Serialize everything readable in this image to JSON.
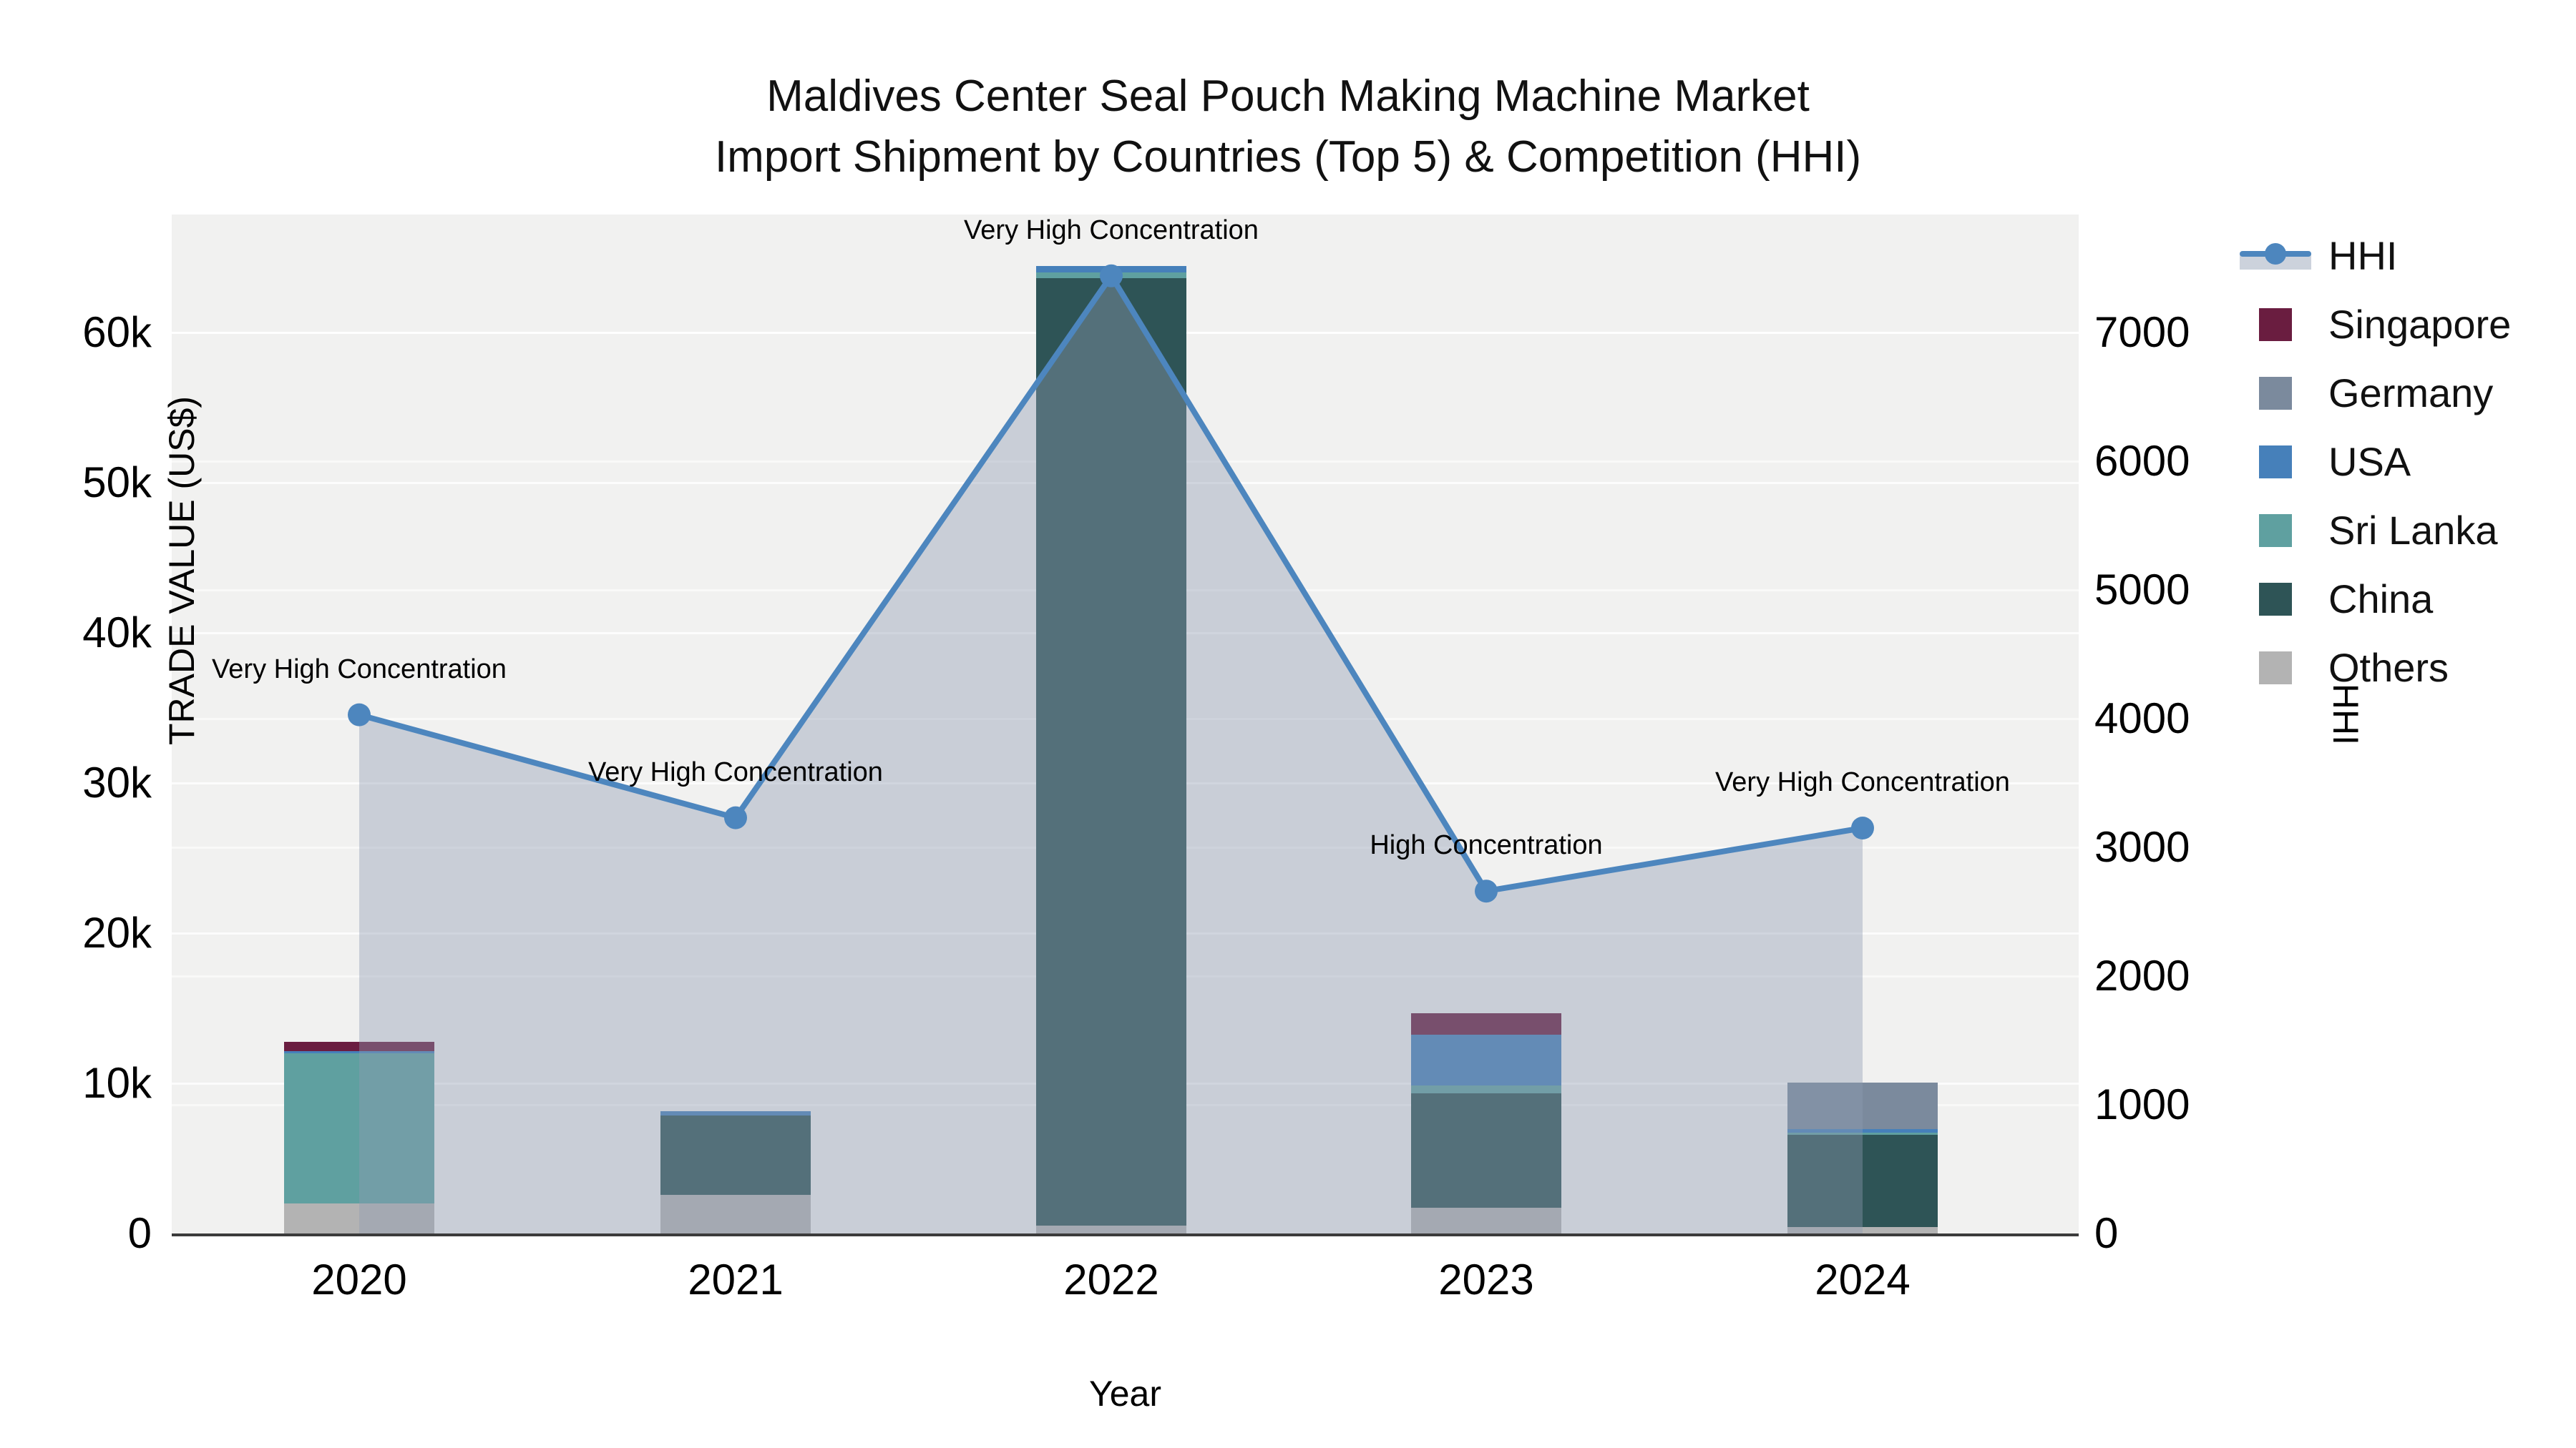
{
  "title": {
    "line1": "Maldives Center Seal Pouch Making Machine Market",
    "line2": "Import Shipment by Countries (Top 5) & Competition (HHI)"
  },
  "axes": {
    "x": {
      "title": "Year",
      "ticks": [
        "2020",
        "2021",
        "2022",
        "2023",
        "2024"
      ]
    },
    "y_left": {
      "title": "TRADE VALUE (US$)",
      "ticks": [
        "0",
        "10k",
        "20k",
        "30k",
        "40k",
        "50k",
        "60k"
      ],
      "tick_values": [
        0,
        10000,
        20000,
        30000,
        40000,
        50000,
        60000
      ],
      "range": [
        0,
        67860
      ]
    },
    "y_right": {
      "title": "HHI",
      "ticks": [
        "0",
        "1000",
        "2000",
        "3000",
        "4000",
        "5000",
        "6000",
        "7000"
      ],
      "tick_values": [
        0,
        1000,
        2000,
        3000,
        4000,
        5000,
        6000,
        7000
      ],
      "range": [
        0,
        7920
      ]
    }
  },
  "colors": {
    "hhi_line": "#4d86be",
    "hhi_area": "rgba(143,156,178,0.40)",
    "singapore": "#6a1d40",
    "germany": "#7b8a9d",
    "usa": "#4680ba",
    "sri_lanka": "#5fa0a0",
    "china": "#2e5456",
    "others": "#b3b3b3",
    "plot_bg": "#f1f1f0"
  },
  "legend": {
    "items": [
      {
        "label": "HHI",
        "type": "line",
        "color": "#4d86be"
      },
      {
        "label": "Singapore",
        "type": "square",
        "color": "#6a1d40"
      },
      {
        "label": "Germany",
        "type": "square",
        "color": "#7b8a9d"
      },
      {
        "label": "USA",
        "type": "square",
        "color": "#4680ba"
      },
      {
        "label": "Sri Lanka",
        "type": "square",
        "color": "#5fa0a0"
      },
      {
        "label": "China",
        "type": "square",
        "color": "#2e5456"
      },
      {
        "label": "Others",
        "type": "square",
        "color": "#b3b3b3"
      }
    ]
  },
  "chart_data": {
    "type": "combo (stacked bar + line)",
    "title": "Maldives Center Seal Pouch Making Machine Market — Import Shipment by Countries (Top 5) & Competition (HHI)",
    "categories": [
      "2020",
      "2021",
      "2022",
      "2023",
      "2024"
    ],
    "xlabel": "Year",
    "ylabel_left": "TRADE VALUE (US$)",
    "ylabel_right": "HHI",
    "bar_stack_order_bottom_to_top": [
      "Others",
      "China",
      "Sri Lanka",
      "USA",
      "Germany",
      "Singapore"
    ],
    "series": [
      {
        "name": "Others",
        "color": "#b3b3b3",
        "values": [
          2000,
          2570,
          520,
          1710,
          430
        ]
      },
      {
        "name": "China",
        "color": "#2e5456",
        "values": [
          0,
          5290,
          63100,
          7620,
          6140
        ]
      },
      {
        "name": "Sri Lanka",
        "color": "#5fa0a0",
        "values": [
          10000,
          0,
          380,
          520,
          140
        ]
      },
      {
        "name": "USA",
        "color": "#4680ba",
        "values": [
          150,
          290,
          430,
          3380,
          240
        ]
      },
      {
        "name": "Germany",
        "color": "#7b8a9d",
        "values": [
          0,
          0,
          0,
          0,
          3100
        ]
      },
      {
        "name": "Singapore",
        "color": "#6a1d40",
        "values": [
          620,
          0,
          0,
          1430,
          0
        ]
      }
    ],
    "bar_totals": [
      12770,
      8150,
      64430,
      14660,
      10050
    ],
    "line_series": {
      "name": "HHI",
      "axis": "right",
      "color": "#4d86be",
      "area_fill": true,
      "values": [
        4030,
        3230,
        7440,
        2660,
        3150
      ]
    },
    "annotations": [
      {
        "x": "2020",
        "text": "Very High Concentration"
      },
      {
        "x": "2021",
        "text": "Very High Concentration"
      },
      {
        "x": "2022",
        "text": "Very High Concentration"
      },
      {
        "x": "2023",
        "text": "High Concentration"
      },
      {
        "x": "2024",
        "text": "Very High Concentration"
      }
    ],
    "legend_position": "right-top-outside",
    "grid": true
  }
}
